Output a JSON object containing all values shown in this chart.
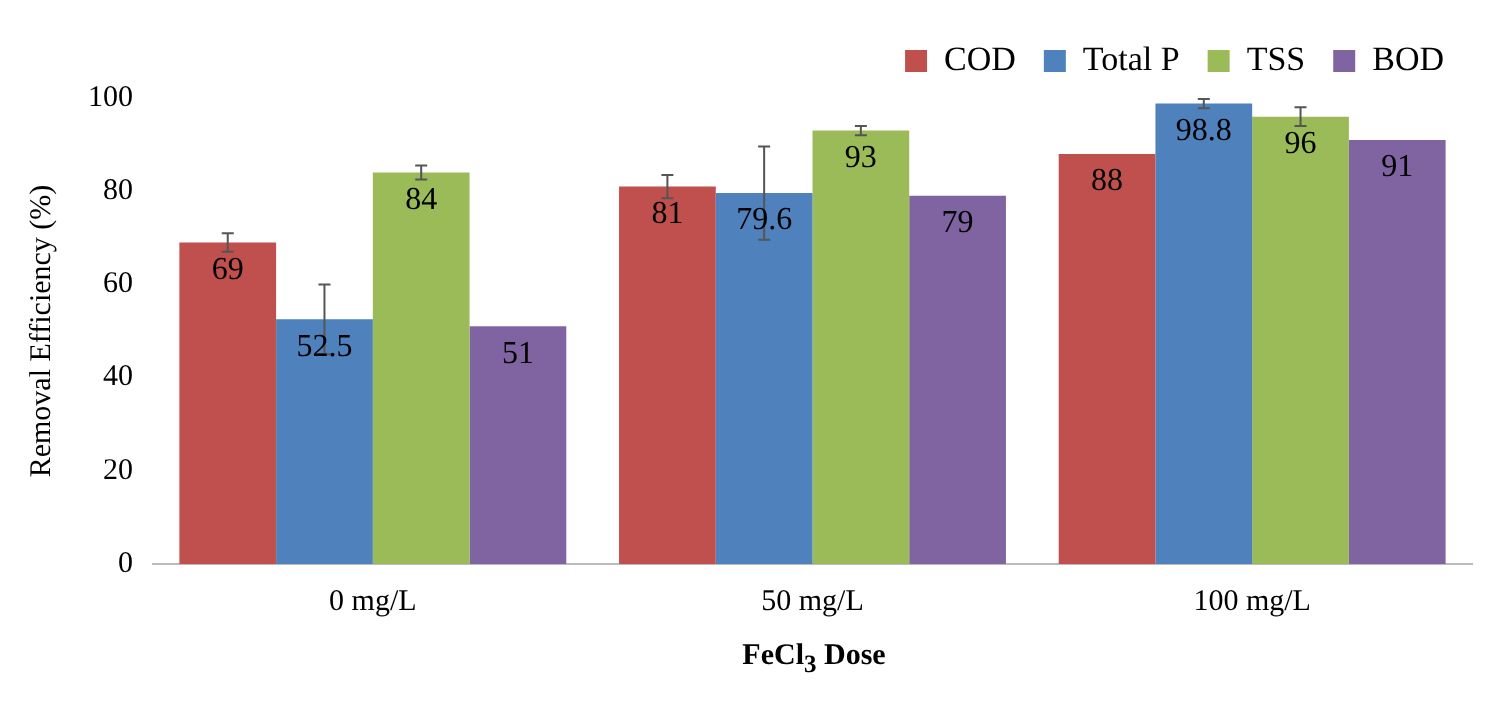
{
  "chart_data": {
    "type": "bar",
    "xlabel": "FeCl$_{3}$ Dose",
    "ylabel": "Removal Efficiency (%)",
    "categories": [
      "0 mg/L",
      "50 mg/L",
      "100 mg/L"
    ],
    "series": [
      {
        "name": "COD",
        "color": "#c0504d",
        "values": [
          69,
          81,
          88
        ],
        "errors": [
          2,
          2.5,
          null
        ]
      },
      {
        "name": "Total P",
        "color": "#4f81bd",
        "values": [
          52.5,
          79.6,
          98.8
        ],
        "errors": [
          7.5,
          10,
          1
        ]
      },
      {
        "name": "TSS",
        "color": "#9bbb59",
        "values": [
          84,
          93,
          96
        ],
        "errors": [
          1.5,
          1,
          2
        ]
      },
      {
        "name": "BOD",
        "color": "#8064a2",
        "values": [
          51,
          79,
          91
        ],
        "errors": [
          null,
          null,
          null
        ]
      }
    ],
    "ylim": [
      0,
      100
    ],
    "yticks": [
      0,
      20,
      40,
      60,
      80,
      100
    ],
    "grid": false,
    "legend": "top right",
    "data_labels": true
  }
}
